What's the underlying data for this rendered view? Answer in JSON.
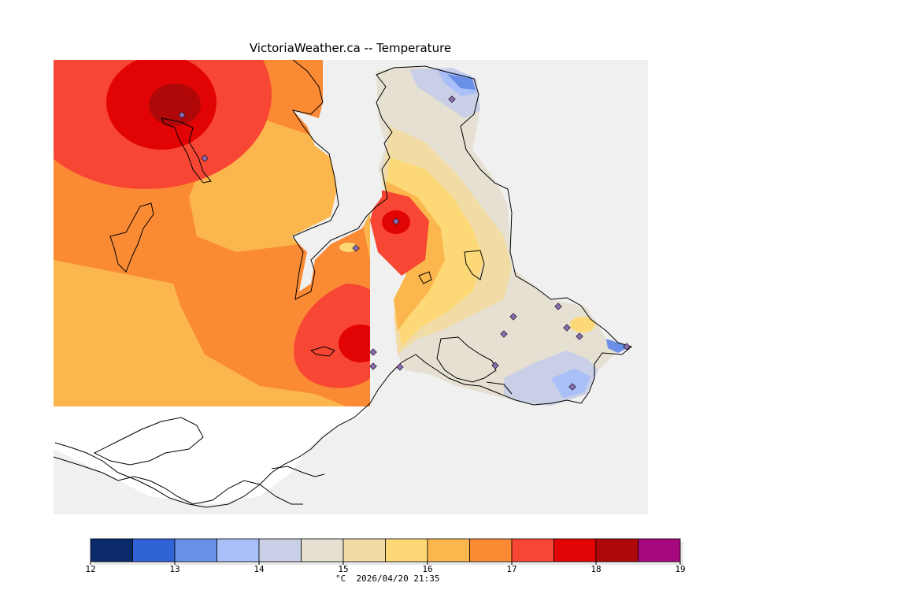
{
  "title": "VictoriaWeather.ca -- Temperature",
  "legend": {
    "ticks": [
      "12",
      "13",
      "14",
      "15",
      "16",
      "17",
      "18",
      "19"
    ],
    "unit": "°C",
    "timestamp": "2026/04/20 21:35",
    "bands": [
      {
        "from": 12.0,
        "to": 12.5,
        "color": "#0a2a6b"
      },
      {
        "from": 12.5,
        "to": 13.0,
        "color": "#2f63d6"
      },
      {
        "from": 13.0,
        "to": 13.5,
        "color": "#6a8fe6"
      },
      {
        "from": 13.5,
        "to": 14.0,
        "color": "#a9bff7"
      },
      {
        "from": 14.0,
        "to": 14.5,
        "color": "#c8cfe6"
      },
      {
        "from": 14.5,
        "to": 15.0,
        "color": "#e6e0d3"
      },
      {
        "from": 15.0,
        "to": 15.5,
        "color": "#f2dca6"
      },
      {
        "from": 15.5,
        "to": 16.0,
        "color": "#fcd976"
      },
      {
        "from": 16.0,
        "to": 16.5,
        "color": "#fbb74d"
      },
      {
        "from": 16.5,
        "to": 17.0,
        "color": "#fb8a34"
      },
      {
        "from": 17.0,
        "to": 17.5,
        "color": "#f84634"
      },
      {
        "from": 17.5,
        "to": 18.0,
        "color": "#e20404"
      },
      {
        "from": 18.0,
        "to": 18.5,
        "color": "#b00808"
      },
      {
        "from": 18.5,
        "to": 19.0,
        "color": "#a8087e"
      }
    ]
  },
  "colors": {
    "land_background": "#f0f0f0",
    "no_data": "#ffffff",
    "coastline": "#000000",
    "station": "#8b6bb0"
  }
}
